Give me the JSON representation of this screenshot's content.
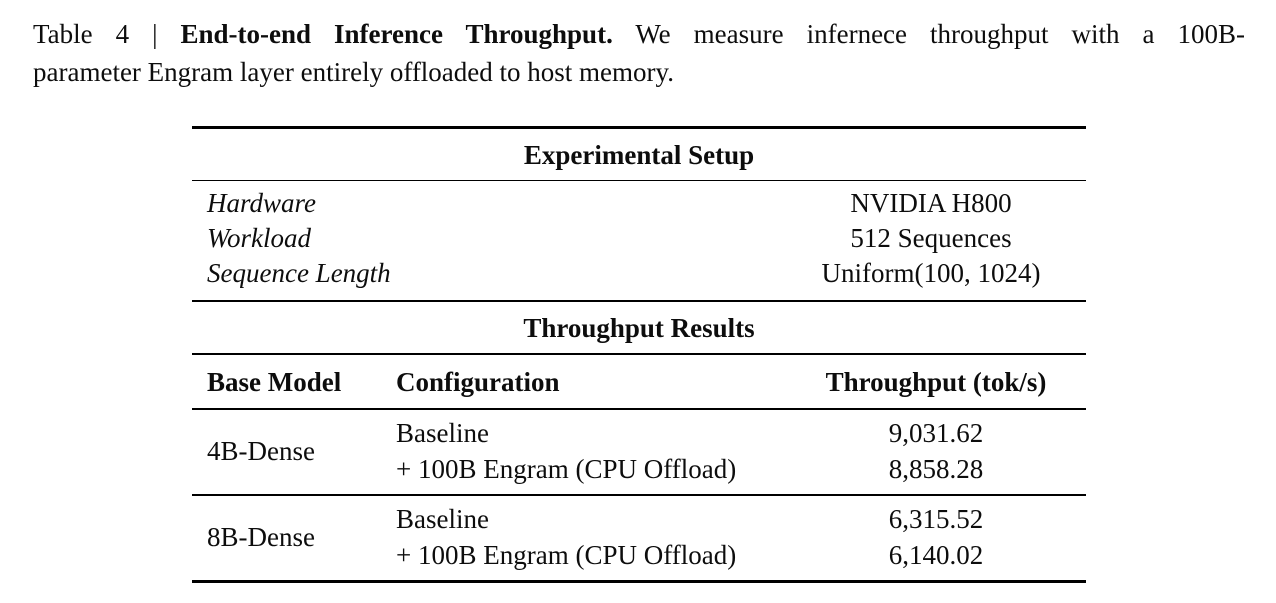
{
  "caption": {
    "label": "Table 4",
    "separator": "|",
    "title": "End-to-end Inference Throughput.",
    "line1_rest": "We measure infernece throughput with a 100B-",
    "line2": "parameter Engram layer entirely offloaded to host memory."
  },
  "table": {
    "setup": {
      "header": "Experimental Setup",
      "rows": [
        {
          "label": "Hardware",
          "value": "NVIDIA H800"
        },
        {
          "label": "Workload",
          "value": "512 Sequences"
        },
        {
          "label": "Sequence Length",
          "value": "Uniform(100, 1024)"
        }
      ]
    },
    "results": {
      "header": "Throughput Results",
      "columns": [
        "Base Model",
        "Configuration",
        "Throughput (tok/s)"
      ],
      "groups": [
        {
          "base_model": "4B-Dense",
          "rows": [
            {
              "configuration": "Baseline",
              "throughput": "9,031.62"
            },
            {
              "configuration": "+ 100B Engram (CPU Offload)",
              "throughput": "8,858.28"
            }
          ]
        },
        {
          "base_model": "8B-Dense",
          "rows": [
            {
              "configuration": "Baseline",
              "throughput": "6,315.52"
            },
            {
              "configuration": "+ 100B Engram (CPU Offload)",
              "throughput": "6,140.02"
            }
          ]
        }
      ]
    }
  },
  "colors": {
    "background": "#ffffff",
    "text": "#0d0d0d",
    "rule": "#000000"
  }
}
